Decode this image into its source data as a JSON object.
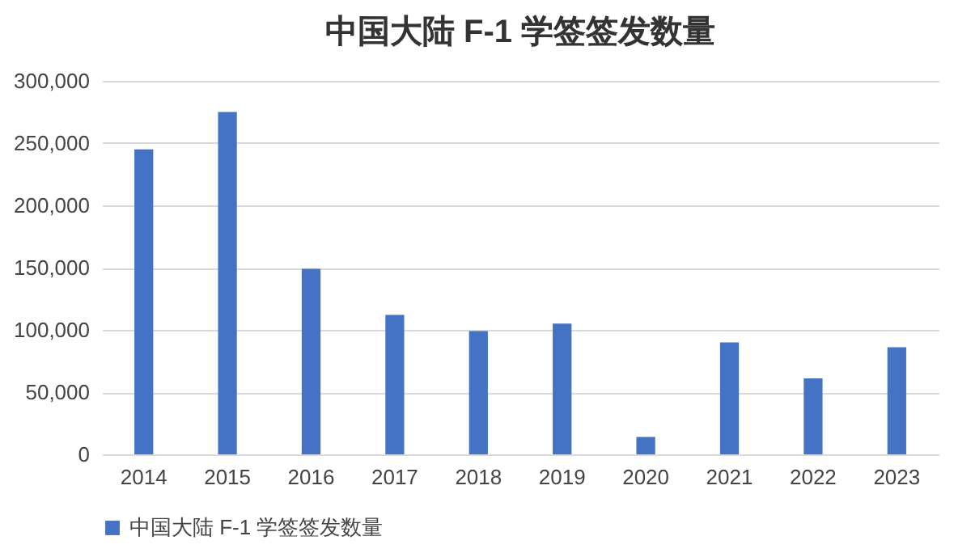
{
  "chart_data": {
    "type": "bar",
    "title": "中国大陆 F-1 学签签发数量",
    "categories": [
      "2014",
      "2015",
      "2016",
      "2017",
      "2018",
      "2019",
      "2020",
      "2021",
      "2022",
      "2023"
    ],
    "series": [
      {
        "name": "中国大陆 F-1 学签签发数量",
        "color": "#4472c4",
        "values": [
          245000,
          275000,
          149000,
          112000,
          99000,
          105000,
          14000,
          90000,
          61000,
          86000
        ]
      }
    ],
    "ylim": [
      0,
      300000
    ],
    "yticks": [
      0,
      {
        "value": 50000,
        "label": "50,000"
      },
      {
        "value": 100000,
        "label": "100,000"
      },
      {
        "value": 150000,
        "label": "150,000"
      },
      {
        "value": 200000,
        "label": "200,000"
      },
      {
        "value": 250000,
        "label": "250,000"
      },
      {
        "value": 300000,
        "label": "300,000"
      }
    ],
    "grid": "y",
    "legend": "bottom"
  }
}
